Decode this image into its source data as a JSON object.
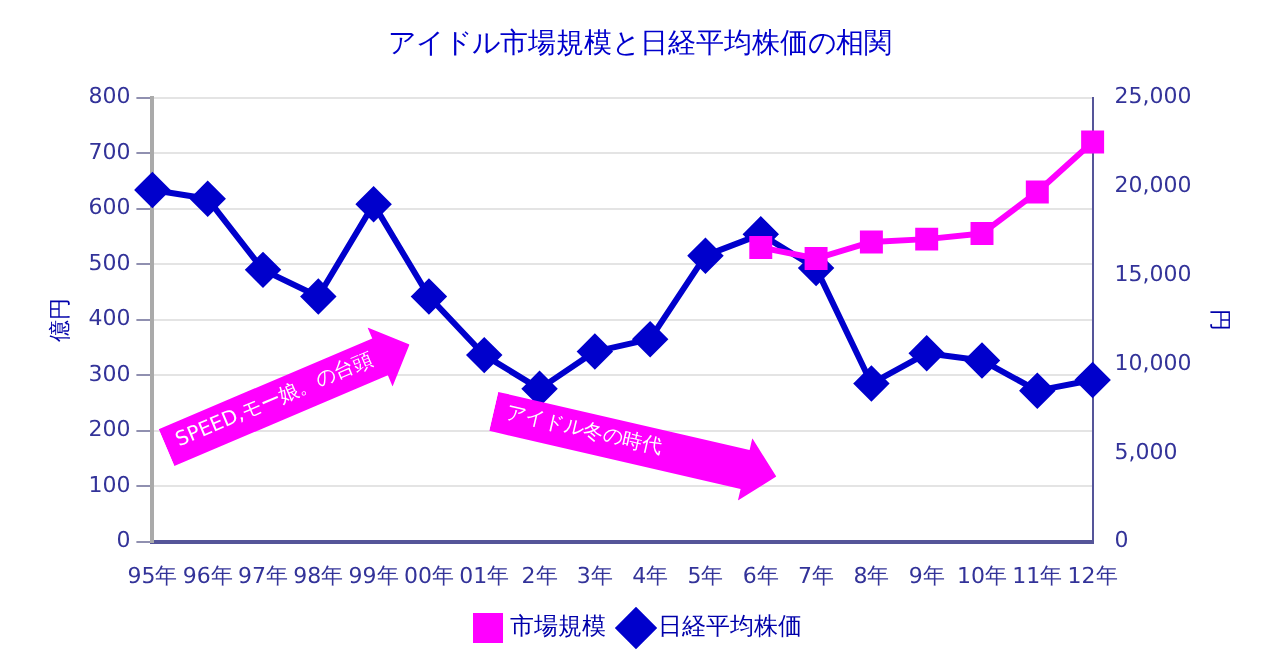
{
  "chart_data": {
    "type": "line",
    "title": "アイドル市場規模と日経平均株価の相関",
    "ylabel": "億円",
    "y2label": "円",
    "categories": [
      "95年",
      "96年",
      "97年",
      "98年",
      "99年",
      "00年",
      "01年",
      "2年",
      "3年",
      "4年",
      "5年",
      "6年",
      "7年",
      "8年",
      "9年",
      "10年",
      "11年",
      "12年"
    ],
    "series": [
      {
        "name": "市場規模",
        "color": "#ff00ff",
        "marker": "square",
        "values": [
          null,
          null,
          null,
          null,
          null,
          null,
          null,
          null,
          null,
          null,
          null,
          530,
          510,
          540,
          545,
          555,
          630,
          720
        ]
      },
      {
        "name": "日経平均株価",
        "color": "#0000cc",
        "marker": "diamond",
        "axis": "y2",
        "values": [
          19800,
          19300,
          15300,
          13800,
          19000,
          13800,
          10500,
          8600,
          10700,
          11400,
          16100,
          17300,
          15400,
          8900,
          10600,
          10200,
          8500,
          9100
        ]
      }
    ],
    "ylim": [
      0,
      800
    ],
    "yticks": [
      0,
      100,
      200,
      300,
      400,
      500,
      600,
      700,
      800
    ],
    "y2lim": [
      0,
      25000
    ],
    "y2ticks": [
      0,
      {
        "value": 5000,
        "label": "5,000"
      },
      {
        "value": 10000,
        "label": "10,000"
      },
      {
        "value": 15000,
        "label": "15,000"
      },
      {
        "value": 20000,
        "label": "20,000"
      },
      {
        "value": 25000,
        "label": "25,000"
      }
    ],
    "grid": "y",
    "legend": "bottom",
    "annotations": [
      "SPEED,モー娘。の台頭",
      "アイドル冬の時代"
    ]
  }
}
